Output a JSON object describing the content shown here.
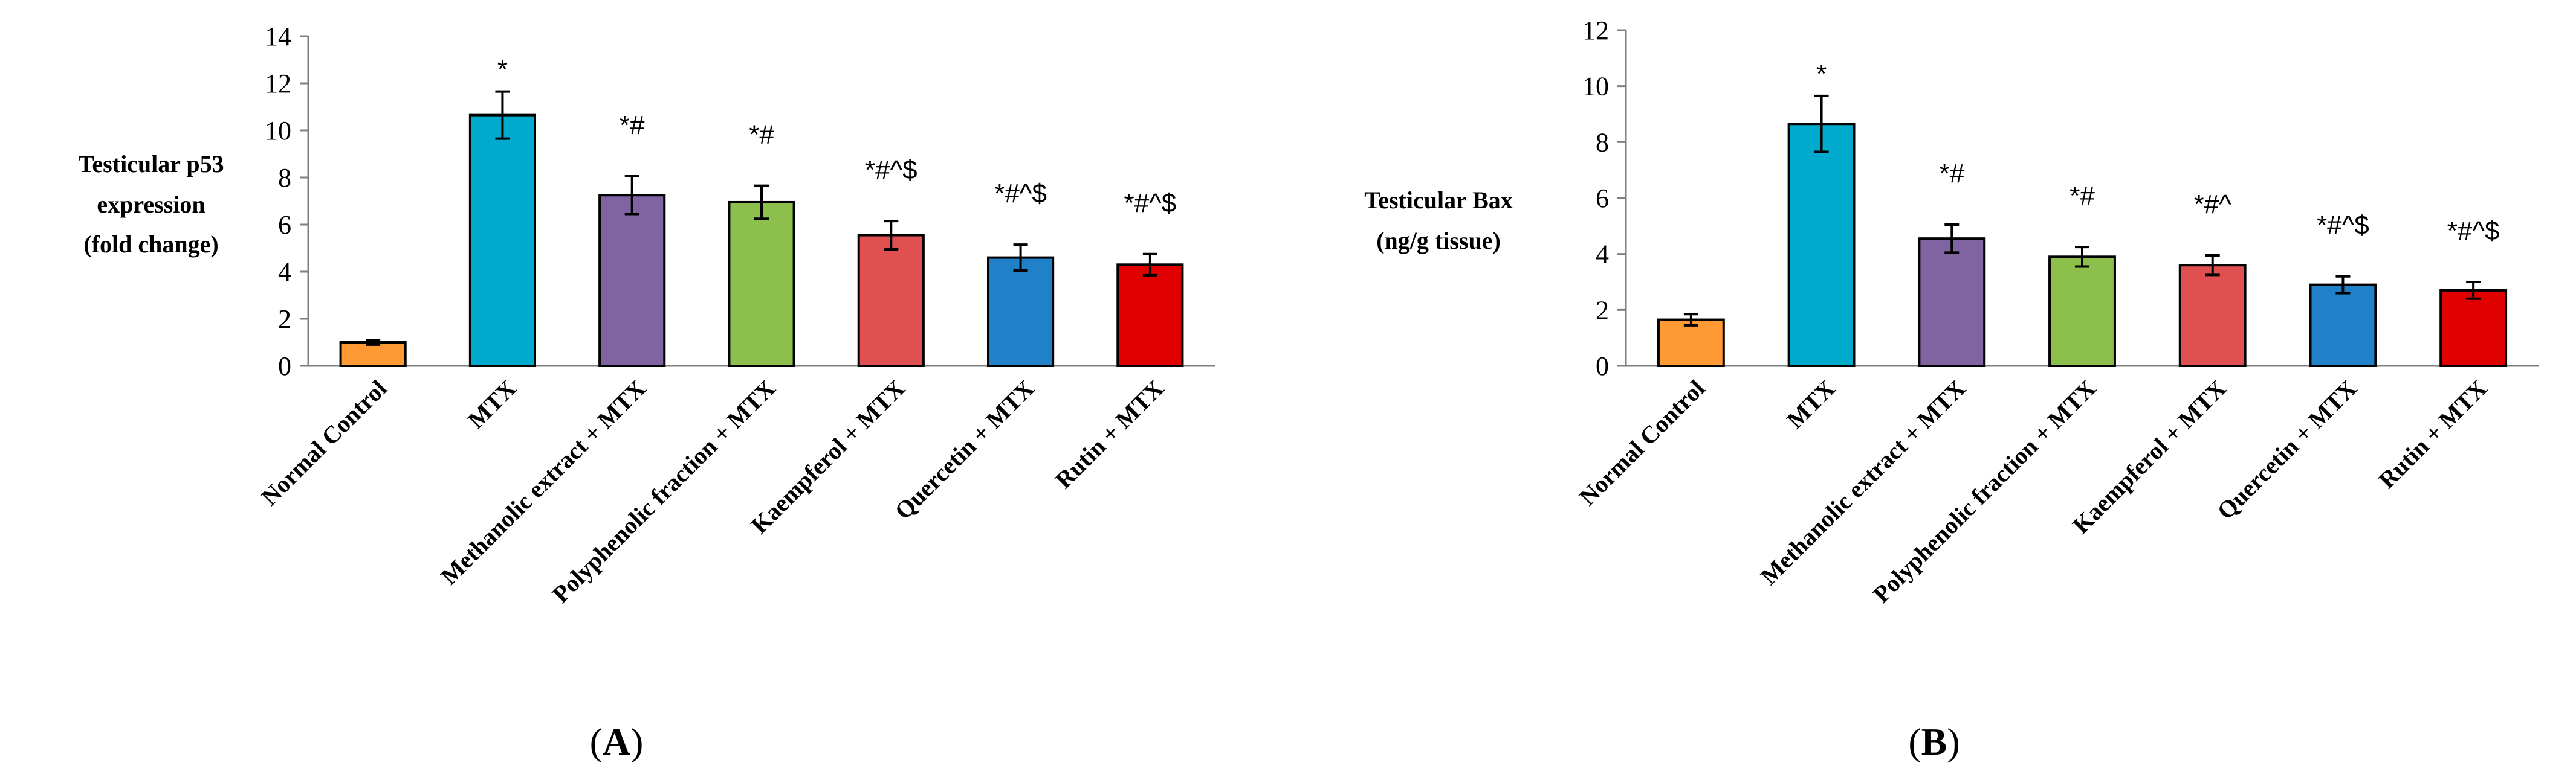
{
  "chart_data": [
    {
      "type": "bar",
      "panel": "A",
      "ylabel": [
        "Testicular p53",
        "expression",
        "(fold change)"
      ],
      "xlabel": "",
      "ylim": [
        0,
        14
      ],
      "yticks": [
        0,
        2,
        4,
        6,
        8,
        10,
        12,
        14
      ],
      "categories": [
        "Normal Control",
        "MTX",
        "Methanolic extract + MTX",
        "Polyphenolic fraction + MTX",
        "Kaempferol + MTX",
        "Quercetin + MTX",
        "Rutin + MTX"
      ],
      "values": [
        1.0,
        10.65,
        7.25,
        6.95,
        5.55,
        4.6,
        4.3
      ],
      "errors": [
        0.1,
        1.0,
        0.8,
        0.7,
        0.6,
        0.55,
        0.45
      ],
      "annotations": [
        "",
        "*",
        "*#",
        "*#",
        "*#^$",
        "*#^$",
        "*#^$"
      ],
      "colors": [
        "#FF9933",
        "#00AACC",
        "#8064A2",
        "#8CBF4C",
        "#E05050",
        "#2080C8",
        "#E00000"
      ]
    },
    {
      "type": "bar",
      "panel": "B",
      "ylabel": [
        "Testicular Bax",
        "(ng/g tissue)"
      ],
      "xlabel": "",
      "ylim": [
        0,
        12
      ],
      "yticks": [
        0,
        2,
        4,
        6,
        8,
        10,
        12
      ],
      "categories": [
        "Normal Control",
        "MTX",
        "Methanolic extract + MTX",
        "Polyphenolic fraction + MTX",
        "Kaempferol + MTX",
        "Quercetin + MTX",
        "Rutin + MTX"
      ],
      "values": [
        1.65,
        8.65,
        4.55,
        3.9,
        3.6,
        2.9,
        2.7
      ],
      "errors": [
        0.2,
        1.0,
        0.5,
        0.35,
        0.35,
        0.3,
        0.3
      ],
      "annotations": [
        "",
        "*",
        "*#",
        "*#",
        "*#^",
        "*#^$",
        "*#^$"
      ],
      "colors": [
        "#FF9933",
        "#00AACC",
        "#8064A2",
        "#8CBF4C",
        "#E05050",
        "#2080C8",
        "#E00000"
      ]
    }
  ]
}
